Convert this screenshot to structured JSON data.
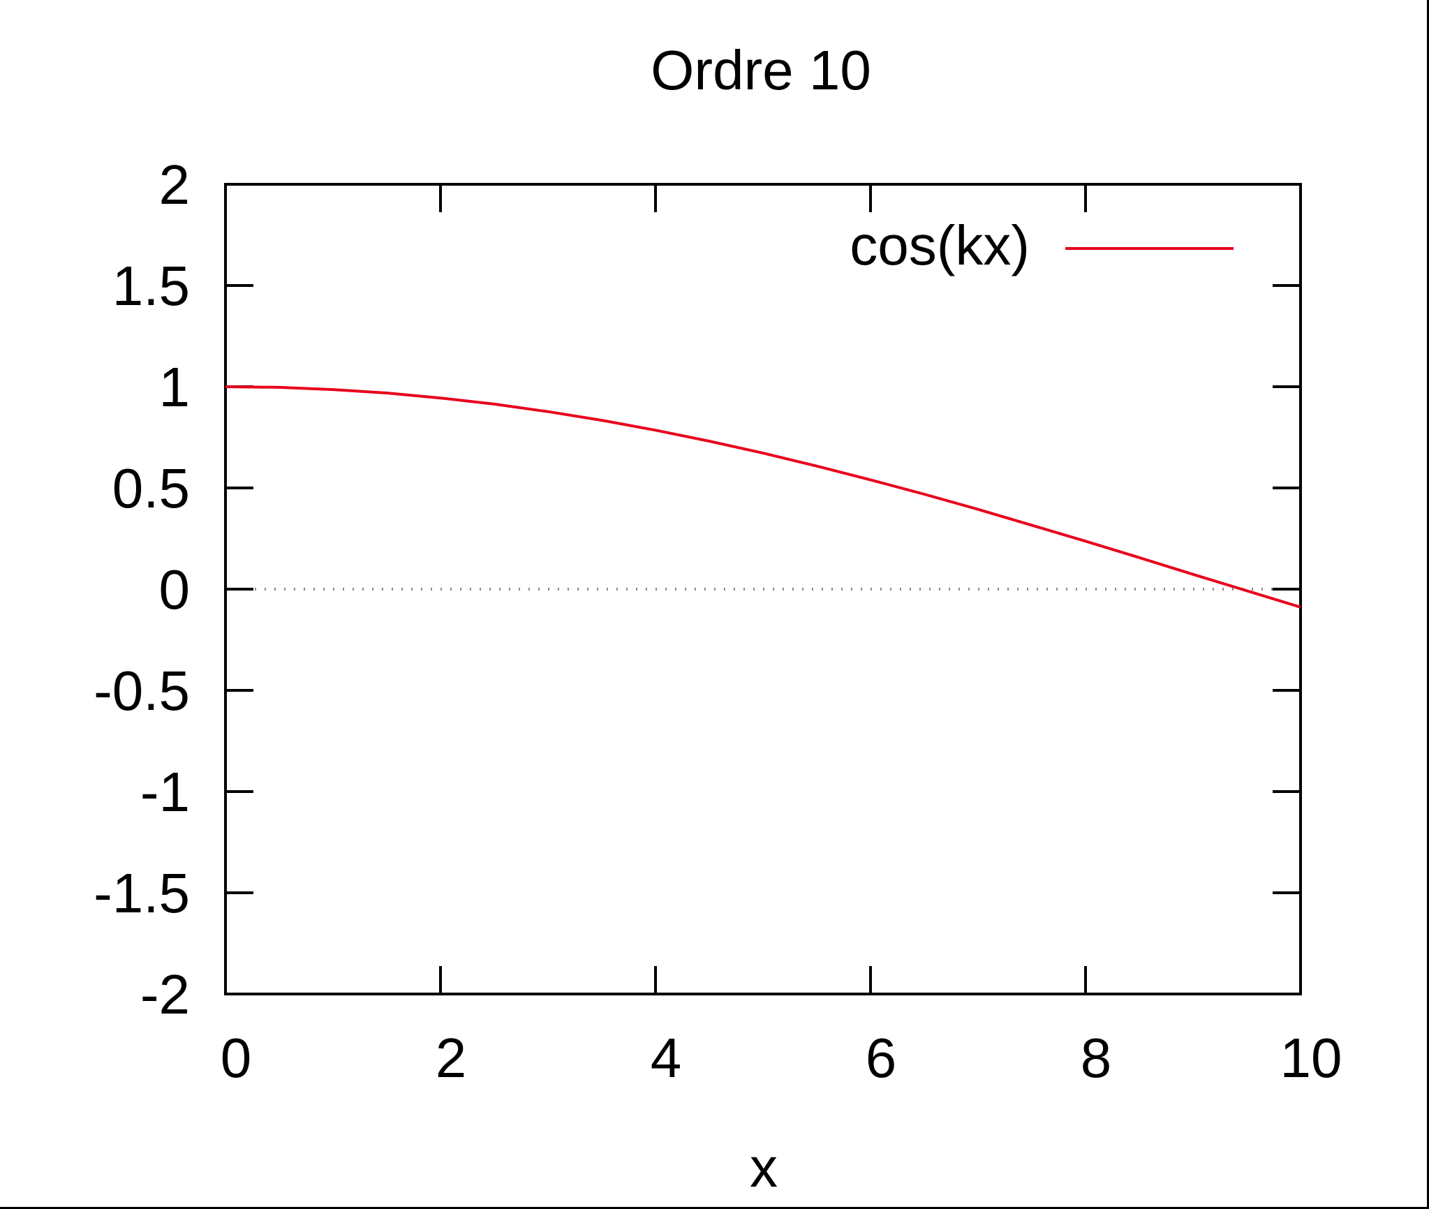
{
  "chart_data": {
    "type": "line",
    "title": "Ordre 10",
    "xlabel": "x",
    "ylabel": "",
    "xlim": [
      0,
      10
    ],
    "ylim": [
      -2,
      2
    ],
    "xticks": [
      0,
      2,
      4,
      6,
      8,
      10
    ],
    "xtick_labels": [
      "0",
      "2",
      "4",
      "6",
      "8",
      "10"
    ],
    "yticks": [
      -2,
      -1.5,
      -1,
      -0.5,
      0,
      0.5,
      1,
      1.5,
      2
    ],
    "ytick_labels": [
      "-2",
      "-1.5",
      "-1",
      "-0.5",
      "0",
      "0.5",
      "1",
      "1.5",
      "2"
    ],
    "zero_line": {
      "y": 0,
      "style": "dotted"
    },
    "grid": false,
    "legend": {
      "placement": "top-right"
    },
    "series": [
      {
        "name": "cos(kx)",
        "color": "#e8001c",
        "x": [
          0,
          0.5,
          1,
          1.5,
          2,
          2.5,
          3,
          3.5,
          4,
          4.5,
          5,
          5.5,
          6,
          6.5,
          7,
          7.5,
          8,
          8.5,
          9,
          9.5,
          10
        ],
        "y": [
          1.0,
          0.997,
          0.986,
          0.969,
          0.944,
          0.914,
          0.877,
          0.834,
          0.785,
          0.731,
          0.672,
          0.608,
          0.54,
          0.469,
          0.394,
          0.316,
          0.237,
          0.156,
          0.073,
          -0.008,
          -0.089
        ]
      }
    ]
  }
}
